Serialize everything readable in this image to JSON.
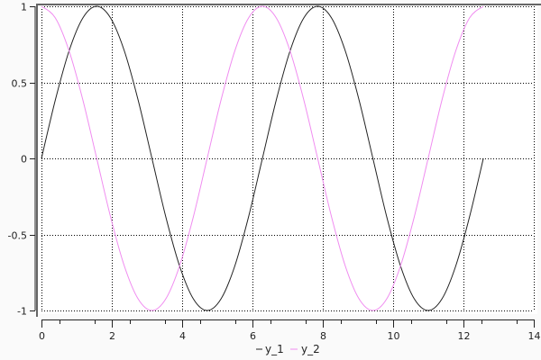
{
  "chart_data": {
    "type": "line",
    "title": "",
    "xlabel": "",
    "ylabel": "",
    "xlim": [
      0,
      14
    ],
    "ylim": [
      -1,
      1
    ],
    "grid": true,
    "legend_position": "bottom",
    "x_ticks": [
      "0",
      "2",
      "4",
      "6",
      "8",
      "10",
      "12",
      "14"
    ],
    "y_ticks": [
      "1",
      "0.5",
      "0",
      "-0.5",
      "-1"
    ],
    "x": [
      0,
      0.393,
      0.785,
      1.178,
      1.571,
      1.963,
      2.356,
      2.749,
      3.142,
      3.534,
      3.927,
      4.32,
      4.712,
      5.105,
      5.498,
      5.89,
      6.283,
      6.676,
      7.069,
      7.461,
      7.854,
      8.247,
      8.639,
      9.032,
      9.425,
      9.817,
      10.21,
      10.603,
      10.996,
      11.388,
      11.781,
      12.174,
      12.566
    ],
    "series": [
      {
        "name": "y_1",
        "color": "#222222",
        "values": [
          0,
          0.383,
          0.707,
          0.924,
          1,
          0.924,
          0.707,
          0.383,
          0,
          -0.383,
          -0.707,
          -0.924,
          -1,
          -0.924,
          -0.707,
          -0.383,
          0,
          0.383,
          0.707,
          0.924,
          1,
          0.924,
          0.707,
          0.383,
          0,
          -0.383,
          -0.707,
          -0.924,
          -1,
          -0.924,
          -0.707,
          -0.383,
          0
        ]
      },
      {
        "name": "y_2",
        "color": "#f08cf0",
        "values": [
          1,
          0.924,
          0.707,
          0.383,
          0,
          -0.383,
          -0.707,
          -0.924,
          -1,
          -0.924,
          -0.707,
          -0.383,
          0,
          0.383,
          0.707,
          0.924,
          1,
          0.924,
          0.707,
          0.383,
          0,
          -0.383,
          -0.707,
          -0.924,
          -1,
          -0.924,
          -0.707,
          -0.383,
          0,
          0.383,
          0.707,
          0.924,
          1
        ]
      }
    ]
  }
}
